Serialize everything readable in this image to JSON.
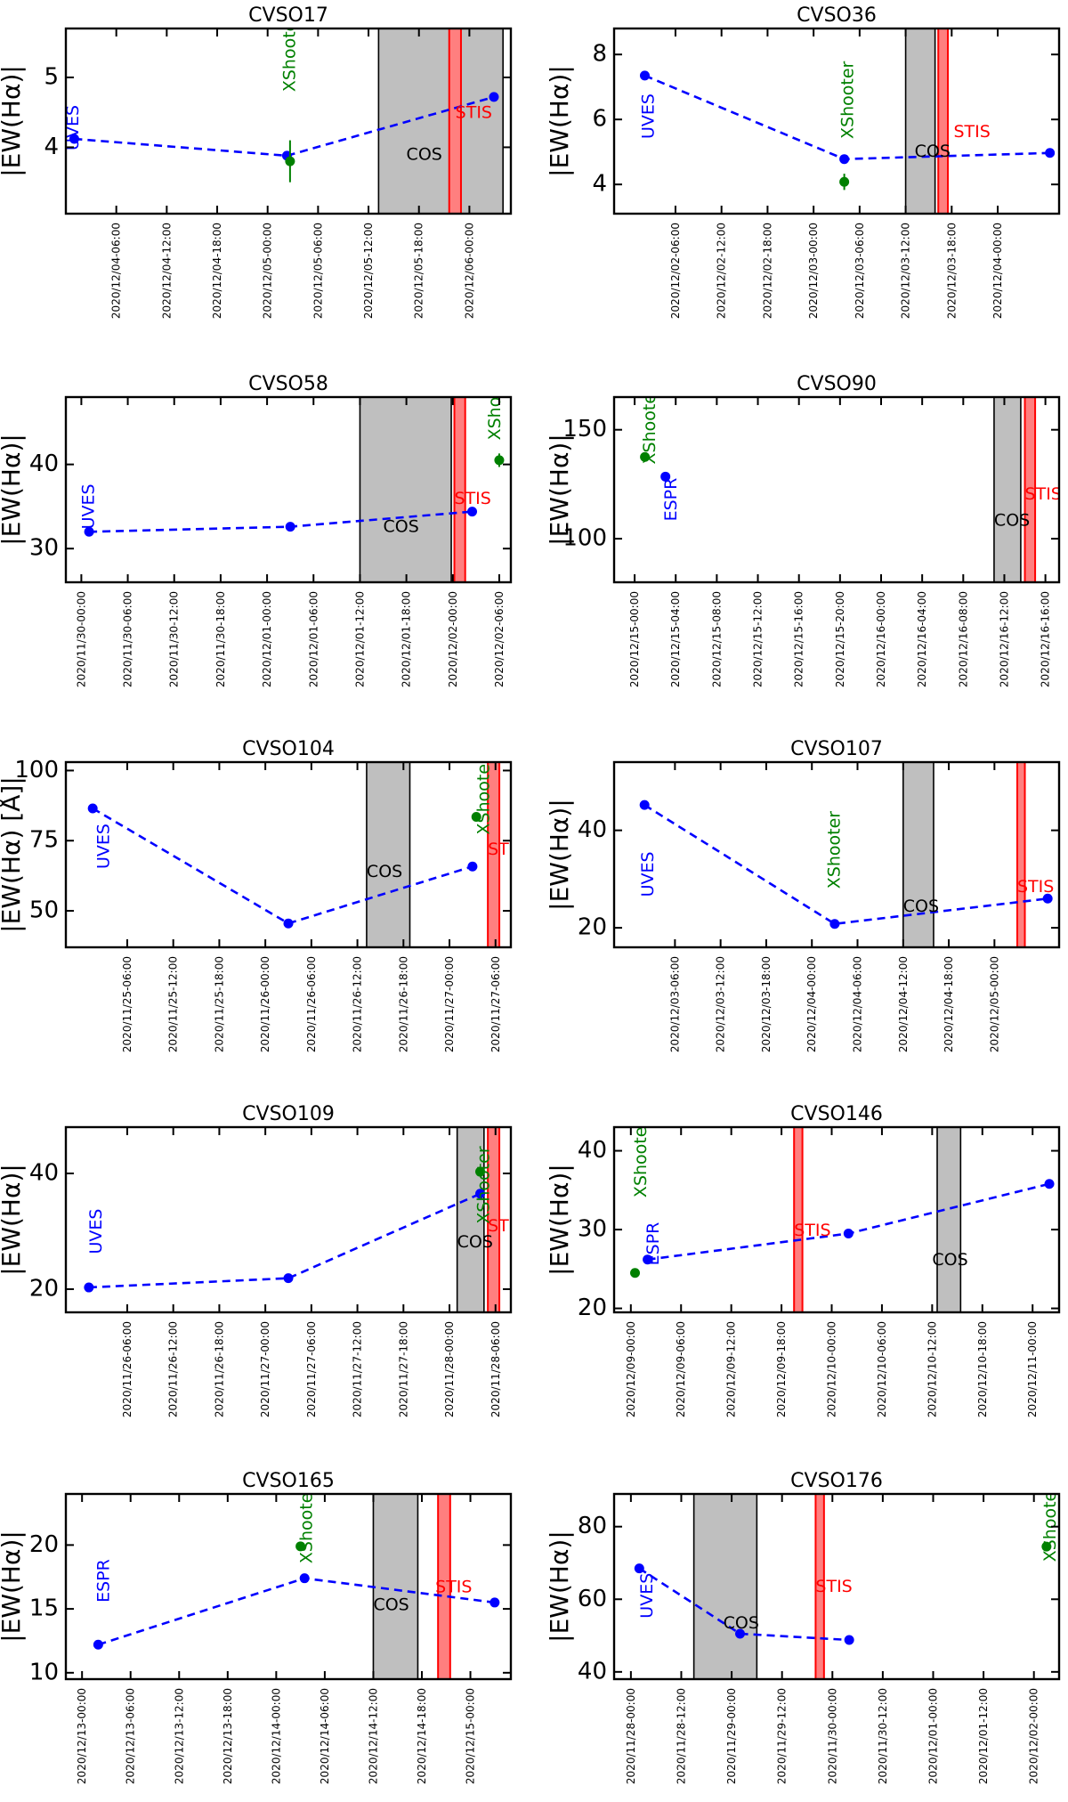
{
  "figure": {
    "name": "CVSO H-alpha equivalent width time series"
  },
  "colors": {
    "uves": "#0000ff",
    "espr": "#0000ff",
    "xshooter": "#008000",
    "cos_fill": "#bfbfbf",
    "stis_fill": "#ff7f7f",
    "stis_edge": "#ff0000",
    "series": "#0000ff"
  },
  "chart_data": [
    {
      "type": "line",
      "title": "CVSO17",
      "ylabel": "|EW(Hα)|",
      "ylim": [
        3.05,
        5.7
      ],
      "yticks": [
        4,
        5
      ],
      "xlim": [
        "2020/12/04-00:00",
        "2020/12/06-04:56"
      ],
      "xticks": [
        "2020/12/04-06:00",
        "2020/12/04-12:00",
        "2020/12/04-18:00",
        "2020/12/05-00:00",
        "2020/12/05-06:00",
        "2020/12/05-12:00",
        "2020/12/05-18:00",
        "2020/12/06-00:00"
      ],
      "series": [
        {
          "name": "uves_espr",
          "points": [
            [
              "2020/12/04-01:00",
              4.12
            ],
            [
              "2020/12/05-02:18",
              3.88
            ],
            [
              "2020/12/06-02:55",
              4.72
            ]
          ]
        },
        {
          "name": "xshooter",
          "points": [
            [
              "2020/12/05-02:40",
              3.8,
              0.3
            ]
          ]
        }
      ],
      "cos_window": [
        "2020/12/05-13:12",
        "2020/12/06-04:00"
      ],
      "stis_window": [
        "2020/12/05-21:36",
        "2020/12/05-23:00"
      ],
      "labels": [
        {
          "text": "UVES",
          "x": "2020/12/04-00:55",
          "y": 4.28,
          "color": "uves",
          "rotated": true
        },
        {
          "text": "XShooter",
          "x": "2020/12/05-02:42",
          "y": 5.35,
          "color": "xshooter",
          "rotated": true
        },
        {
          "text": "COS",
          "x": "2020/12/05-16:30",
          "y": 3.82,
          "color": "black",
          "rotated": false
        },
        {
          "text": "STIS",
          "x": "2020/12/05-22:20",
          "y": 4.42,
          "color": "stis_edge",
          "rotated": false
        }
      ]
    },
    {
      "type": "line",
      "title": "CVSO36",
      "ylabel": "|EW(Hα)|",
      "ylim": [
        3.1,
        8.8
      ],
      "yticks": [
        4,
        6,
        8
      ],
      "xlim": [
        "2020/12/01-22:00",
        "2020/12/04-08:00"
      ],
      "xticks": [
        "2020/12/02-06:00",
        "2020/12/02-12:00",
        "2020/12/02-18:00",
        "2020/12/03-00:00",
        "2020/12/03-06:00",
        "2020/12/03-12:00",
        "2020/12/03-18:00",
        "2020/12/04-00:00"
      ],
      "series": [
        {
          "name": "uves_espr",
          "points": [
            [
              "2020/12/02-02:00",
              7.35
            ],
            [
              "2020/12/03-04:00",
              4.78
            ],
            [
              "2020/12/04-06:48",
              4.97
            ]
          ]
        },
        {
          "name": "xshooter",
          "points": [
            [
              "2020/12/03-04:00",
              4.08,
              0.25
            ]
          ]
        }
      ],
      "cos_window": [
        "2020/12/03-12:00",
        "2020/12/03-15:50"
      ],
      "stis_window": [
        "2020/12/03-16:15",
        "2020/12/03-17:30"
      ],
      "labels": [
        {
          "text": "UVES",
          "x": "2020/12/02-02:30",
          "y": 6.1,
          "color": "uves",
          "rotated": true
        },
        {
          "text": "XShooter",
          "x": "2020/12/03-04:30",
          "y": 6.6,
          "color": "xshooter",
          "rotated": true
        },
        {
          "text": "COS",
          "x": "2020/12/03-13:10",
          "y": 4.85,
          "color": "black",
          "rotated": false
        },
        {
          "text": "STIS",
          "x": "2020/12/03-18:15",
          "y": 5.45,
          "color": "stis_edge",
          "rotated": false
        }
      ]
    },
    {
      "type": "line",
      "title": "CVSO58",
      "ylabel": "|EW(Hα)|",
      "ylim": [
        26,
        48
      ],
      "yticks": [
        30,
        40
      ],
      "xlim": [
        "2020/11/29-22:00",
        "2020/12/02-07:30"
      ],
      "xticks": [
        "2020/11/30-00:00",
        "2020/11/30-06:00",
        "2020/11/30-12:00",
        "2020/11/30-18:00",
        "2020/12/01-00:00",
        "2020/12/01-06:00",
        "2020/12/01-12:00",
        "2020/12/01-18:00",
        "2020/12/02-00:00",
        "2020/12/02-06:00"
      ],
      "series": [
        {
          "name": "uves_espr",
          "points": [
            [
              "2020/11/30-01:00",
              32.0
            ],
            [
              "2020/12/01-03:00",
              32.6
            ],
            [
              "2020/12/02-02:30",
              34.4
            ]
          ]
        },
        {
          "name": "xshooter",
          "points": [
            [
              "2020/12/02-06:00",
              40.5,
              0.8
            ]
          ]
        }
      ],
      "cos_window": [
        "2020/12/01-12:00",
        "2020/12/01-23:48"
      ],
      "stis_window": [
        "2020/12/02-00:12",
        "2020/12/02-01:36"
      ],
      "labels": [
        {
          "text": "UVES",
          "x": "2020/11/30-01:00",
          "y": 35.0,
          "color": "uves",
          "rotated": true
        },
        {
          "text": "XShooter",
          "x": "2020/12/02-05:30",
          "y": 47.5,
          "color": "xshooter",
          "rotated": true
        },
        {
          "text": "COS",
          "x": "2020/12/01-15:00",
          "y": 32.0,
          "color": "black",
          "rotated": false
        },
        {
          "text": "STIS",
          "x": "2020/12/02-00:12",
          "y": 35.3,
          "color": "stis_edge",
          "rotated": false
        }
      ]
    },
    {
      "type": "line",
      "title": "CVSO90",
      "ylabel": "|EW(Hα)|",
      "ylim": [
        80,
        165
      ],
      "yticks": [
        100,
        150
      ],
      "xlim": [
        "2020/12/14-22:00",
        "2020/12/16-17:20"
      ],
      "xticks": [
        "2020/12/15-00:00",
        "2020/12/15-04:00",
        "2020/12/15-08:00",
        "2020/12/15-12:00",
        "2020/12/15-16:00",
        "2020/12/15-20:00",
        "2020/12/16-00:00",
        "2020/12/16-04:00",
        "2020/12/16-08:00",
        "2020/12/16-12:00",
        "2020/12/16-16:00"
      ],
      "series": [
        {
          "name": "uves_espr",
          "points": [
            [
              "2020/12/15-03:00",
              128.5
            ]
          ]
        },
        {
          "name": "xshooter",
          "points": [
            [
              "2020/12/15-01:00",
              137.5,
              0.8
            ]
          ]
        }
      ],
      "cos_window": [
        "2020/12/16-11:00",
        "2020/12/16-13:36"
      ],
      "stis_window": [
        "2020/12/16-14:00",
        "2020/12/16-15:00"
      ],
      "labels": [
        {
          "text": "XShooter",
          "x": "2020/12/15-01:30",
          "y": 152,
          "color": "xshooter",
          "rotated": true
        },
        {
          "text": "ESPR",
          "x": "2020/12/15-03:36",
          "y": 118,
          "color": "espr",
          "rotated": true
        },
        {
          "text": "COS",
          "x": "2020/12/16-11:00",
          "y": 106,
          "color": "black",
          "rotated": false
        },
        {
          "text": "STIS",
          "x": "2020/12/16-14:00",
          "y": 118,
          "color": "stis_edge",
          "rotated": false
        }
      ]
    },
    {
      "type": "line",
      "title": "CVSO104",
      "ylabel": "|EW(Hα) [Å]|",
      "ylim": [
        37,
        103
      ],
      "yticks": [
        50,
        75,
        100
      ],
      "xlim": [
        "2020/11/24-22:00",
        "2020/11/27-08:00"
      ],
      "xticks": [
        "2020/11/25-06:00",
        "2020/11/25-12:00",
        "2020/11/25-18:00",
        "2020/11/26-00:00",
        "2020/11/26-06:00",
        "2020/11/26-12:00",
        "2020/11/26-18:00",
        "2020/11/27-00:00",
        "2020/11/27-06:00"
      ],
      "series": [
        {
          "name": "uves_espr",
          "points": [
            [
              "2020/11/25-01:30",
              86.5
            ],
            [
              "2020/11/26-03:00",
              45.5
            ],
            [
              "2020/11/27-03:00",
              65.8
            ]
          ]
        },
        {
          "name": "xshooter",
          "points": [
            [
              "2020/11/27-03:30",
              83.5,
              1.0
            ]
          ]
        }
      ],
      "cos_window": [
        "2020/11/26-13:12",
        "2020/11/26-18:50"
      ],
      "stis_window": [
        "2020/11/27-05:00",
        "2020/11/27-06:30"
      ],
      "labels": [
        {
          "text": "UVES",
          "x": "2020/11/25-03:00",
          "y": 73,
          "color": "uves",
          "rotated": true
        },
        {
          "text": "XShooter",
          "x": "2020/11/27-04:30",
          "y": 91,
          "color": "xshooter",
          "rotated": true
        },
        {
          "text": "COS",
          "x": "2020/11/26-13:12",
          "y": 62,
          "color": "black",
          "rotated": false
        },
        {
          "text": "STIS",
          "x": "2020/11/27-05:00",
          "y": 70,
          "color": "stis_edge",
          "rotated": false
        }
      ]
    },
    {
      "type": "line",
      "title": "CVSO107",
      "ylabel": "|EW(Hα)|",
      "ylim": [
        16,
        54
      ],
      "yticks": [
        20,
        40
      ],
      "xlim": [
        "2020/12/02-22:00",
        "2020/12/05-08:30"
      ],
      "xticks": [
        "2020/12/03-06:00",
        "2020/12/03-12:00",
        "2020/12/03-18:00",
        "2020/12/04-00:00",
        "2020/12/04-06:00",
        "2020/12/04-12:00",
        "2020/12/04-18:00",
        "2020/12/05-00:00"
      ],
      "series": [
        {
          "name": "uves_espr",
          "points": [
            [
              "2020/12/03-02:00",
              45.2
            ],
            [
              "2020/12/04-03:00",
              20.8
            ],
            [
              "2020/12/05-07:00",
              26.0
            ]
          ]
        }
      ],
      "cos_window": [
        "2020/12/04-12:00",
        "2020/12/04-16:00"
      ],
      "stis_window": [
        "2020/12/05-03:00",
        "2020/12/05-04:00"
      ],
      "labels": [
        {
          "text": "UVES",
          "x": "2020/12/03-02:30",
          "y": 31,
          "color": "uves",
          "rotated": true
        },
        {
          "text": "XShooter",
          "x": "2020/12/04-03:00",
          "y": 36,
          "color": "xshooter",
          "rotated": true
        },
        {
          "text": "COS",
          "x": "2020/12/04-12:00",
          "y": 23.3,
          "color": "black",
          "rotated": false
        },
        {
          "text": "STIS",
          "x": "2020/12/05-03:00",
          "y": 27.3,
          "color": "stis_edge",
          "rotated": false
        }
      ]
    },
    {
      "type": "line",
      "title": "CVSO109",
      "ylabel": "|EW(Hα)|",
      "ylim": [
        16,
        48
      ],
      "yticks": [
        20,
        40
      ],
      "xlim": [
        "2020/11/25-22:00",
        "2020/11/28-08:00"
      ],
      "xticks": [
        "2020/11/26-06:00",
        "2020/11/26-12:00",
        "2020/11/26-18:00",
        "2020/11/27-00:00",
        "2020/11/27-06:00",
        "2020/11/27-12:00",
        "2020/11/27-18:00",
        "2020/11/28-00:00",
        "2020/11/28-06:00"
      ],
      "series": [
        {
          "name": "uves_espr",
          "points": [
            [
              "2020/11/26-01:00",
              20.3
            ],
            [
              "2020/11/27-03:00",
              21.9
            ],
            [
              "2020/11/28-04:00",
              36.5
            ]
          ]
        },
        {
          "name": "xshooter",
          "points": [
            [
              "2020/11/28-04:00",
              40.3,
              0.6
            ]
          ]
        }
      ],
      "cos_window": [
        "2020/11/28-01:00",
        "2020/11/28-04:30"
      ],
      "stis_window": [
        "2020/11/28-05:00",
        "2020/11/28-06:30"
      ],
      "labels": [
        {
          "text": "UVES",
          "x": "2020/11/26-02:00",
          "y": 30,
          "color": "uves",
          "rotated": true
        },
        {
          "text": "XShooter",
          "x": "2020/11/28-04:30",
          "y": 38,
          "color": "xshooter",
          "rotated": true
        },
        {
          "text": "COS",
          "x": "2020/11/28-01:00",
          "y": 27.2,
          "color": "black",
          "rotated": false
        },
        {
          "text": "STIS",
          "x": "2020/11/28-05:00",
          "y": 30,
          "color": "stis_edge",
          "rotated": false
        }
      ]
    },
    {
      "type": "line",
      "title": "CVSO146",
      "ylabel": "|EW(Hα)|",
      "ylim": [
        19.5,
        43
      ],
      "yticks": [
        20,
        30,
        40
      ],
      "xlim": [
        "2020/12/08-22:00",
        "2020/12/11-03:10"
      ],
      "xticks": [
        "2020/12/09-00:00",
        "2020/12/09-06:00",
        "2020/12/09-12:00",
        "2020/12/09-18:00",
        "2020/12/10-00:00",
        "2020/12/10-06:00",
        "2020/12/10-12:00",
        "2020/12/10-18:00",
        "2020/12/11-00:00"
      ],
      "series": [
        {
          "name": "uves_espr",
          "points": [
            [
              "2020/12/09-02:00",
              26.2
            ],
            [
              "2020/12/10-02:00",
              29.5
            ],
            [
              "2020/12/11-02:00",
              35.8
            ]
          ]
        },
        {
          "name": "xshooter",
          "points": [
            [
              "2020/12/09-00:30",
              24.5,
              0.4
            ]
          ]
        }
      ],
      "cos_window": [
        "2020/12/10-12:36",
        "2020/12/10-15:24"
      ],
      "stis_window": [
        "2020/12/09-19:30",
        "2020/12/09-20:30"
      ],
      "labels": [
        {
          "text": "XShooter",
          "x": "2020/12/09-01:15",
          "y": 39,
          "color": "xshooter",
          "rotated": true
        },
        {
          "text": "ESPR",
          "x": "2020/12/09-02:45",
          "y": 28.2,
          "color": "espr",
          "rotated": true
        },
        {
          "text": "STIS",
          "x": "2020/12/09-19:30",
          "y": 29.2,
          "color": "stis_edge",
          "rotated": false
        },
        {
          "text": "COS",
          "x": "2020/12/10-12:00",
          "y": 25.5,
          "color": "black",
          "rotated": false
        }
      ]
    },
    {
      "type": "line",
      "title": "CVSO165",
      "ylabel": "|EW(Hα)|",
      "ylim": [
        9.5,
        24
      ],
      "yticks": [
        10,
        15,
        20
      ],
      "xlim": [
        "2020/12/12-22:00",
        "2020/12/15-05:00"
      ],
      "xticks": [
        "2020/12/13-00:00",
        "2020/12/13-06:00",
        "2020/12/13-12:00",
        "2020/12/13-18:00",
        "2020/12/14-00:00",
        "2020/12/14-06:00",
        "2020/12/14-12:00",
        "2020/12/14-18:00",
        "2020/12/15-00:00"
      ],
      "series": [
        {
          "name": "uves_espr",
          "points": [
            [
              "2020/12/13-02:00",
              12.2
            ],
            [
              "2020/12/14-03:30",
              17.4
            ],
            [
              "2020/12/15-03:00",
              15.5
            ]
          ]
        },
        {
          "name": "xshooter",
          "points": [
            [
              "2020/12/14-03:00",
              19.9,
              0.2
            ]
          ]
        }
      ],
      "cos_window": [
        "2020/12/14-12:00",
        "2020/12/14-17:30"
      ],
      "stis_window": [
        "2020/12/14-20:00",
        "2020/12/14-21:30"
      ],
      "labels": [
        {
          "text": "ESPR",
          "x": "2020/12/13-02:45",
          "y": 17.2,
          "color": "espr",
          "rotated": true
        },
        {
          "text": "XShooter",
          "x": "2020/12/14-03:50",
          "y": 21.6,
          "color": "xshooter",
          "rotated": true
        },
        {
          "text": "COS",
          "x": "2020/12/14-12:00",
          "y": 14.9,
          "color": "black",
          "rotated": false
        },
        {
          "text": "STIS",
          "x": "2020/12/14-19:40",
          "y": 16.3,
          "color": "stis_edge",
          "rotated": false
        }
      ]
    },
    {
      "type": "line",
      "title": "CVSO176",
      "ylabel": "|EW(Hα)|",
      "ylim": [
        38,
        89
      ],
      "yticks": [
        40,
        60,
        80
      ],
      "xlim": [
        "2020/11/27-20:00",
        "2020/12/02-06:00"
      ],
      "xticks": [
        "2020/11/28-00:00",
        "2020/11/28-12:00",
        "2020/11/29-00:00",
        "2020/11/29-12:00",
        "2020/11/30-00:00",
        "2020/11/30-12:00",
        "2020/12/01-00:00",
        "2020/12/01-12:00",
        "2020/12/02-00:00"
      ],
      "series": [
        {
          "name": "uves_espr",
          "points": [
            [
              "2020/11/28-02:00",
              68.5
            ],
            [
              "2020/11/29-02:00",
              50.5
            ],
            [
              "2020/11/30-04:00",
              48.8
            ]
          ]
        },
        {
          "name": "xshooter",
          "points": [
            [
              "2020/12/02-03:00",
              74.5,
              0.5
            ]
          ]
        }
      ],
      "cos_window": [
        "2020/11/28-15:00",
        "2020/11/29-06:00"
      ],
      "stis_window": [
        "2020/11/29-20:00",
        "2020/11/29-22:00"
      ],
      "labels": [
        {
          "text": "UVES",
          "x": "2020/11/28-04:00",
          "y": 61,
          "color": "uves",
          "rotated": true
        },
        {
          "text": "XShooter",
          "x": "2020/12/02-04:00",
          "y": 81,
          "color": "xshooter",
          "rotated": true
        },
        {
          "text": "COS",
          "x": "2020/11/28-22:00",
          "y": 52,
          "color": "black",
          "rotated": false
        },
        {
          "text": "STIS",
          "x": "2020/11/29-20:00",
          "y": 62,
          "color": "stis_edge",
          "rotated": false
        }
      ]
    }
  ]
}
